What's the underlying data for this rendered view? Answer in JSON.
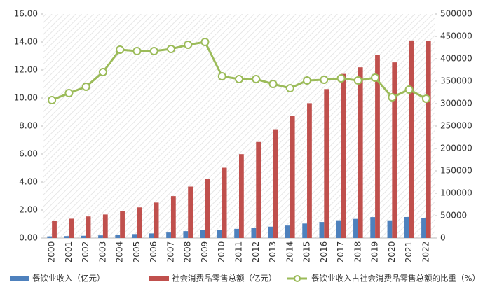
{
  "chart_data": {
    "type": "bar_line",
    "categories": [
      "2000",
      "2001",
      "2002",
      "2003",
      "2004",
      "2005",
      "2006",
      "2007",
      "2008",
      "2009",
      "2010",
      "2011",
      "2012",
      "2013",
      "2014",
      "2015",
      "2016",
      "2017",
      "2018",
      "2019",
      "2020",
      "2021",
      "2022"
    ],
    "series": [
      {
        "name": "餐饮业收入（亿元）",
        "color": "#4e81bd",
        "type": "bar",
        "axis": "y2",
        "values": [
          3753,
          4369,
          5092,
          6000,
          7486,
          8887,
          10346,
          12352,
          15404,
          17998,
          17648,
          20543,
          23283,
          25392,
          27860,
          32310,
          35799,
          39644,
          42716,
          46721,
          39527,
          46895,
          43941
        ]
      },
      {
        "name": "社会消费品零售总额（亿元）",
        "color": "#c0504d",
        "type": "bar",
        "axis": "y2",
        "values": [
          39106,
          43055,
          48136,
          52516,
          59501,
          68353,
          79145,
          93572,
          114830,
          132678,
          156998,
          187206,
          214433,
          242843,
          271896,
          300931,
          332316,
          366262,
          380987,
          408017,
          391981,
          440823,
          439733
        ]
      },
      {
        "name": "餐饮业收入占社会消费品零售总额的比重（%）",
        "color": "#9bbb59",
        "type": "line",
        "values": [
          9.85,
          10.35,
          10.8,
          11.85,
          13.45,
          13.35,
          13.35,
          13.5,
          13.8,
          14.0,
          11.55,
          11.35,
          11.35,
          11.0,
          10.7,
          11.25,
          11.3,
          11.4,
          11.25,
          11.45,
          10.05,
          10.6,
          9.95
        ]
      }
    ],
    "ylim": [
      0,
      16
    ],
    "yticks": [
      {
        "value": 0,
        "label": "0.00"
      },
      {
        "value": 2,
        "label": "2.00"
      },
      {
        "value": 4,
        "label": "4.00"
      },
      {
        "value": 6,
        "label": "6.00"
      },
      {
        "value": 8,
        "label": "8.00"
      },
      {
        "value": 10,
        "label": "10.00"
      },
      {
        "value": 12,
        "label": "12.00"
      },
      {
        "value": 14,
        "label": "14.00"
      },
      {
        "value": 16,
        "label": "16.00"
      }
    ],
    "y2lim": [
      0,
      500000
    ],
    "y2ticks": [
      0,
      50000,
      100000,
      150000,
      200000,
      250000,
      300000,
      350000,
      400000,
      450000,
      500000
    ],
    "legend": "bottom"
  }
}
